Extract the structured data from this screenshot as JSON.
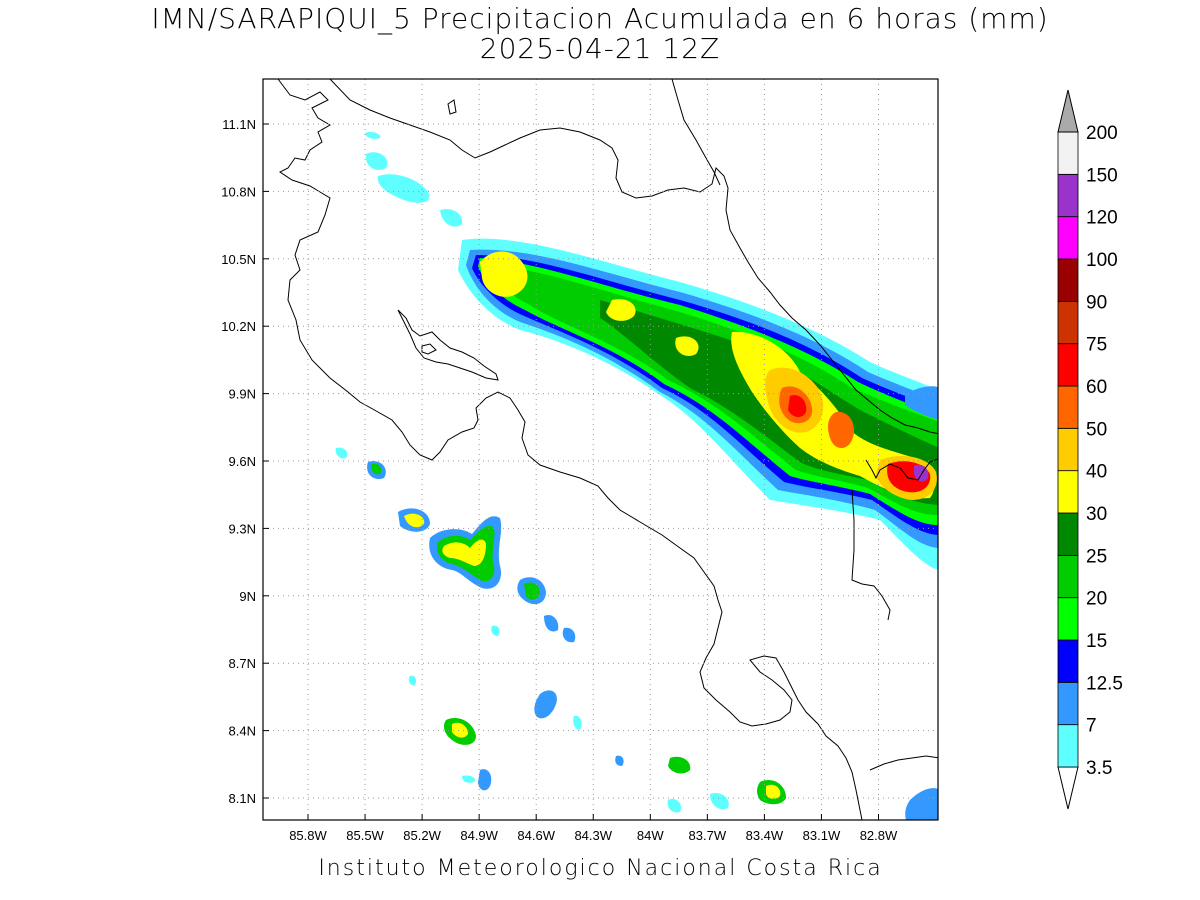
{
  "title": {
    "line1": "IMN/SARAPIQUI_5 Precipitacion Acumulada en 6 horas (mm)",
    "line2": "2025-04-21 12Z"
  },
  "footer": "Instituto Meteorologico Nacional Costa Rica",
  "axes": {
    "lon_labels": [
      "85.8W",
      "85.5W",
      "85.2W",
      "84.9W",
      "84.6W",
      "84.3W",
      "84W",
      "83.7W",
      "83.4W",
      "83.1W",
      "82.8W"
    ],
    "lat_labels": [
      "11.1N",
      "10.8N",
      "10.5N",
      "10.2N",
      "9.9N",
      "9.6N",
      "9.3N",
      "9N",
      "8.7N",
      "8.4N",
      "8.1N"
    ],
    "grid": "dotted"
  },
  "colorbar": {
    "levels": [
      "3.5",
      "7",
      "12.5",
      "15",
      "20",
      "25",
      "30",
      "40",
      "50",
      "60",
      "75",
      "90",
      "100",
      "120",
      "150",
      "200"
    ],
    "colors": [
      "#ffffff",
      "#5fffff",
      "#3399ff",
      "#0000ff",
      "#00ff00",
      "#00cc00",
      "#008800",
      "#ffff00",
      "#ffcc00",
      "#ff6600",
      "#ff0000",
      "#cc3300",
      "#990000",
      "#ff00ff",
      "#9933cc",
      "#f2f2f2",
      "#aaaaaa"
    ],
    "extend": "both"
  }
}
